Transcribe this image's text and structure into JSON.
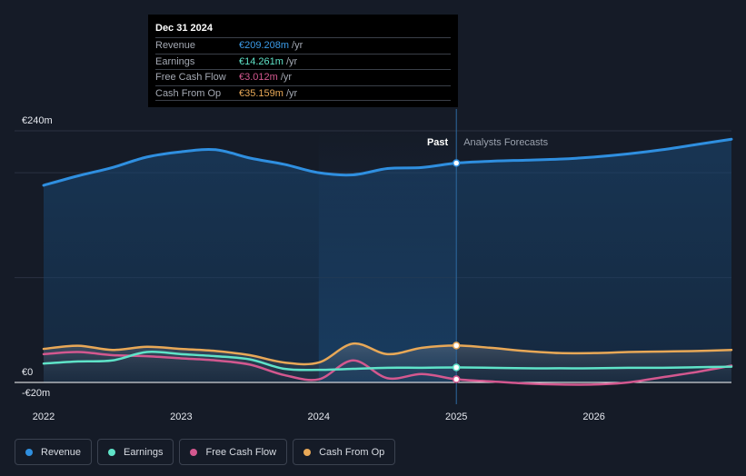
{
  "tooltip": {
    "date": "Dec 31 2024",
    "rows": [
      {
        "label": "Revenue",
        "value": "€209.208m",
        "unit": "/yr",
        "color": "#3b9be8"
      },
      {
        "label": "Earnings",
        "value": "€14.261m",
        "unit": "/yr",
        "color": "#5fe3c8"
      },
      {
        "label": "Free Cash Flow",
        "value": "€3.012m",
        "unit": "/yr",
        "color": "#d3588f"
      },
      {
        "label": "Cash From Op",
        "value": "€35.159m",
        "unit": "/yr",
        "color": "#e8a857"
      }
    ]
  },
  "legend": [
    {
      "label": "Revenue",
      "color": "#2f8fe0"
    },
    {
      "label": "Earnings",
      "color": "#5fe3c8"
    },
    {
      "label": "Free Cash Flow",
      "color": "#d3588f"
    },
    {
      "label": "Cash From Op",
      "color": "#e8a857"
    }
  ],
  "chart_data": {
    "type": "line",
    "y_tick_labels": [
      "€240m",
      "€0",
      "-€20m"
    ],
    "x_tick_labels": [
      "2022",
      "2023",
      "2024",
      "2025",
      "2026"
    ],
    "ylim": [
      -20,
      240
    ],
    "xlim": [
      2022,
      2027.0
    ],
    "past_label": "Past",
    "forecast_label": "Analysts Forecasts",
    "divider_x": 2025.0,
    "highlight_range": [
      2024.0,
      2025.0
    ],
    "series": [
      {
        "name": "Revenue",
        "color": "#2f8fe0",
        "fill": true,
        "x": [
          2022.0,
          2022.25,
          2022.5,
          2022.75,
          2023.0,
          2023.25,
          2023.5,
          2023.75,
          2024.0,
          2024.25,
          2024.5,
          2024.75,
          2025.0,
          2025.25,
          2025.5,
          2025.75,
          2026.0,
          2026.25,
          2026.5,
          2026.75,
          2027.0
        ],
        "y": [
          188,
          197,
          205,
          215,
          220,
          222,
          214,
          208,
          200,
          198,
          204,
          205,
          209.2,
          211,
          212,
          213,
          215,
          218,
          222,
          227,
          232
        ]
      },
      {
        "name": "Cash From Op",
        "color": "#e8a857",
        "fill": false,
        "x": [
          2022.0,
          2022.25,
          2022.5,
          2022.75,
          2023.0,
          2023.25,
          2023.5,
          2023.75,
          2024.0,
          2024.25,
          2024.5,
          2024.75,
          2025.0,
          2025.25,
          2025.5,
          2025.75,
          2026.0,
          2026.25,
          2026.5,
          2026.75,
          2027.0
        ],
        "y": [
          32,
          35,
          31,
          34,
          32,
          30,
          26,
          19,
          19,
          37,
          27,
          33,
          35.2,
          33,
          30,
          28,
          28,
          29,
          29.5,
          30,
          31
        ]
      },
      {
        "name": "Earnings",
        "color": "#5fe3c8",
        "fill": false,
        "x": [
          2022.0,
          2022.25,
          2022.5,
          2022.75,
          2023.0,
          2023.25,
          2023.5,
          2023.75,
          2024.0,
          2024.25,
          2024.5,
          2024.75,
          2025.0,
          2025.25,
          2025.5,
          2025.75,
          2026.0,
          2026.25,
          2026.5,
          2026.75,
          2027.0
        ],
        "y": [
          18,
          20,
          21,
          29,
          27,
          25,
          22,
          13,
          12,
          13,
          14,
          14,
          14.3,
          14,
          13.5,
          13.5,
          13.5,
          14,
          14,
          14.5,
          15
        ]
      },
      {
        "name": "Free Cash Flow",
        "color": "#d3588f",
        "fill": false,
        "x": [
          2022.0,
          2022.25,
          2022.5,
          2022.75,
          2023.0,
          2023.25,
          2023.5,
          2023.75,
          2024.0,
          2024.25,
          2024.5,
          2024.75,
          2025.0,
          2025.25,
          2025.5,
          2025.75,
          2026.0,
          2026.25,
          2026.5,
          2026.75,
          2027.0
        ],
        "y": [
          27,
          29,
          26,
          25,
          23,
          21,
          17,
          7,
          3,
          21,
          4,
          8,
          3.0,
          1,
          -1,
          -2,
          -2,
          0,
          5,
          10,
          16
        ]
      }
    ]
  }
}
